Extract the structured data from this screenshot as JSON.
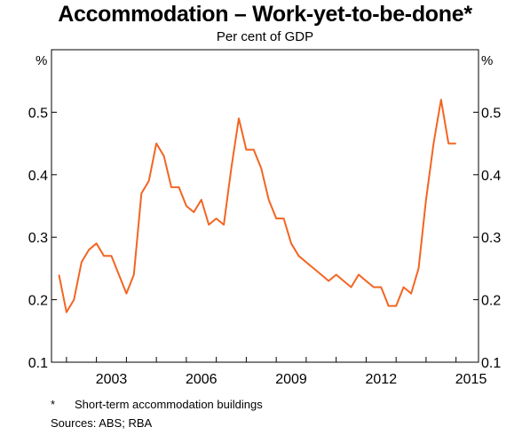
{
  "chart_data": {
    "type": "line",
    "title": "Accommodation – Work-yet-to-be-done*",
    "subtitle": "Per cent of GDP",
    "unit_left": "%",
    "unit_right": "%",
    "ylim": [
      0.1,
      0.6
    ],
    "yticks": [
      "0.1",
      "0.2",
      "0.3",
      "0.4",
      "0.5"
    ],
    "xlim": [
      2001.5,
      2015.75
    ],
    "xticks": [
      "2003",
      "2006",
      "2009",
      "2012",
      "2015"
    ],
    "grid": false,
    "line_color": "#f26522",
    "series": [
      {
        "x": [
          2001.75,
          2002.0,
          2002.25,
          2002.5,
          2002.75,
          2003.0,
          2003.25,
          2003.5,
          2003.75,
          2004.0,
          2004.25,
          2004.5,
          2004.75,
          2005.0,
          2005.25,
          2005.5,
          2005.75,
          2006.0,
          2006.25,
          2006.5,
          2006.75,
          2007.0,
          2007.25,
          2007.5,
          2007.75,
          2008.0,
          2008.25,
          2008.5,
          2008.75,
          2009.0,
          2009.25,
          2009.5,
          2009.75,
          2010.0,
          2010.25,
          2010.5,
          2010.75,
          2011.0,
          2011.25,
          2011.5,
          2011.75,
          2012.0,
          2012.25,
          2012.5,
          2012.75,
          2013.0,
          2013.25,
          2013.5,
          2013.75,
          2014.0,
          2014.25,
          2014.5,
          2014.75,
          2015.0
        ],
        "values": [
          0.24,
          0.18,
          0.2,
          0.26,
          0.28,
          0.29,
          0.27,
          0.27,
          0.24,
          0.21,
          0.24,
          0.37,
          0.39,
          0.45,
          0.43,
          0.38,
          0.38,
          0.35,
          0.34,
          0.36,
          0.32,
          0.33,
          0.32,
          0.41,
          0.49,
          0.44,
          0.44,
          0.41,
          0.36,
          0.33,
          0.33,
          0.29,
          0.27,
          0.26,
          0.25,
          0.24,
          0.23,
          0.24,
          0.23,
          0.22,
          0.24,
          0.23,
          0.22,
          0.22,
          0.19,
          0.19,
          0.22,
          0.21,
          0.25,
          0.36,
          0.45,
          0.52,
          0.45,
          0.45
        ]
      }
    ],
    "footnote_mark": "*",
    "footnote_text": "Short-term accommodation buildings",
    "sources_label": "Sources:",
    "sources_text": "ABS; RBA"
  }
}
